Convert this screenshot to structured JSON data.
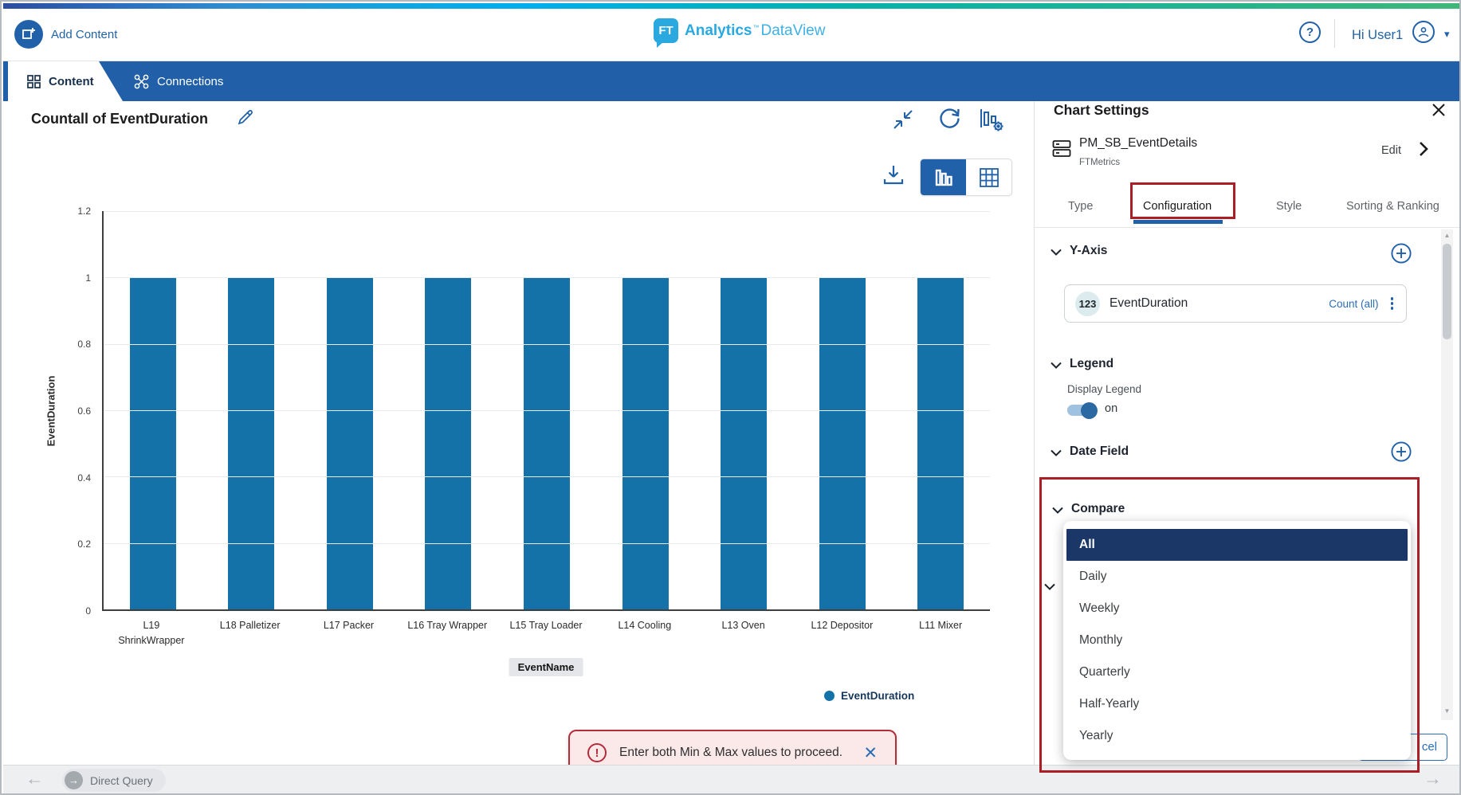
{
  "header": {
    "add_content_label": "Add Content",
    "logo_badge": "FT",
    "logo_brand": "Analytics",
    "logo_tm": "™",
    "logo_product": "DataView",
    "greeting": "Hi User1"
  },
  "nav_tabs": {
    "content": "Content",
    "connections": "Connections"
  },
  "chart": {
    "title": "Countall of EventDuration",
    "x_axis_badge": "EventName",
    "legend_label": "EventDuration"
  },
  "chart_data": {
    "type": "bar",
    "title": "Countall of EventDuration",
    "categories": [
      "L19 ShrinkWrapper",
      "L18 Palletizer",
      "L17 Packer",
      "L16 Tray Wrapper",
      "L15 Tray Loader",
      "L14 Cooling",
      "L13 Oven",
      "L12 Depositor",
      "L11 Mixer"
    ],
    "values": [
      1,
      1,
      1,
      1,
      1,
      1,
      1,
      1,
      1
    ],
    "xlabel": "EventName",
    "ylabel": "EventDuration",
    "ylim": [
      0,
      1.2
    ],
    "y_tick_labels": [
      "0",
      "0.2",
      "0.4",
      "0.6",
      "0.8",
      "1",
      "1.2"
    ],
    "legend": [
      "EventDuration"
    ],
    "legend_position": "bottom-right",
    "grid": true,
    "bar_color": "#1572a9"
  },
  "toast": {
    "message": "Enter both Min & Max values to proceed."
  },
  "status_bar": {
    "query_label": "Direct Query"
  },
  "panel": {
    "title": "Chart Settings",
    "dataset": {
      "name": "PM_SB_EventDetails",
      "source": "FTMetrics",
      "edit_label": "Edit"
    },
    "tabs": [
      "Type",
      "Configuration",
      "Style",
      "Sorting & Ranking"
    ],
    "active_tab": "Configuration",
    "y_axis": {
      "heading": "Y-Axis",
      "field_badge": "123",
      "field_name": "EventDuration",
      "aggregation": "Count (all)"
    },
    "legend": {
      "heading": "Legend",
      "toggle_label": "Display Legend",
      "toggle_state": "on"
    },
    "date_field": {
      "heading": "Date Field"
    },
    "compare": {
      "heading": "Compare",
      "options": [
        "All",
        "Daily",
        "Weekly",
        "Monthly",
        "Quarterly",
        "Half-Yearly",
        "Yearly"
      ],
      "selected": "All"
    },
    "cancel_visible_label": "cel"
  },
  "colors": {
    "accent_blue": "#2061a9",
    "bar_blue": "#1572a9",
    "selected_navy": "#1b3767",
    "annotation_red": "#ab1e26",
    "logo_cyan": "#29a9e0",
    "toast_red": "#b42b3a"
  },
  "icons": {
    "help": "?",
    "caret_down": "▾",
    "back_arrow": "←",
    "forward_arrow": "→",
    "scroll_up": "▲",
    "scroll_down": "▼",
    "alert": "!",
    "toast_close": "✕",
    "dq_arrow": "→"
  }
}
